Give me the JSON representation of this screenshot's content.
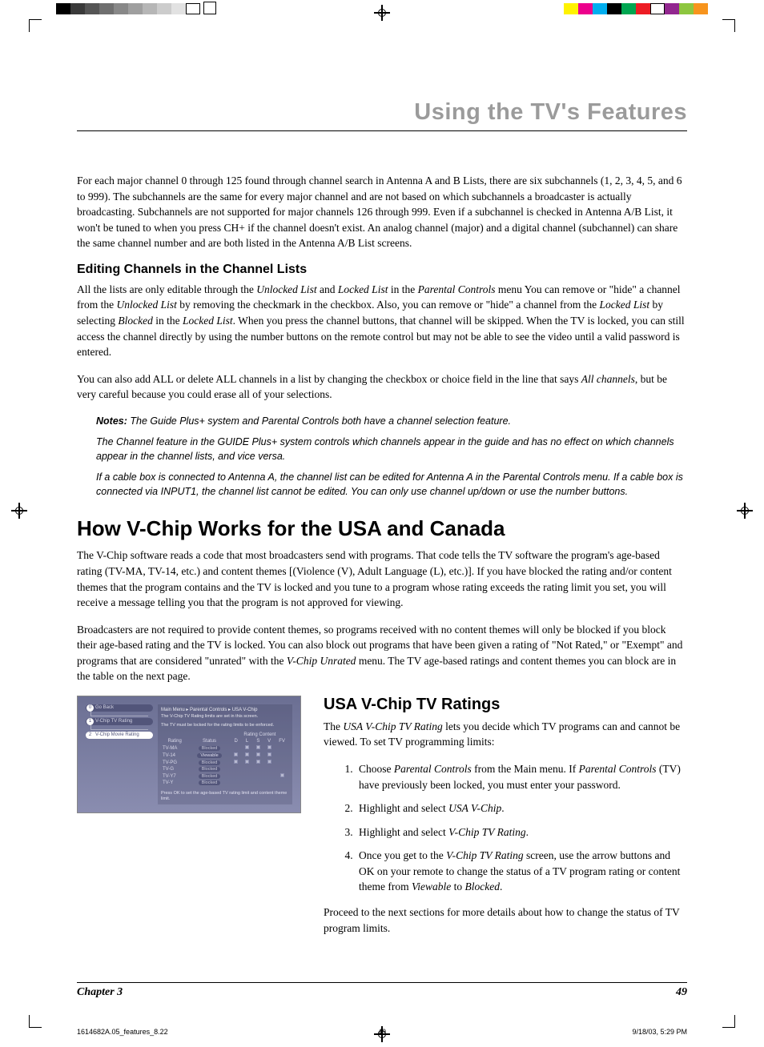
{
  "colorbar_left": [
    "#000000",
    "#3a3a3a",
    "#555555",
    "#6f6f6f",
    "#888888",
    "#9f9f9f",
    "#b6b6b6",
    "#cccccc",
    "#e2e2e2",
    "#ffffff"
  ],
  "colorbar_right": [
    "#fff200",
    "#ec008c",
    "#00aeef",
    "#000000",
    "#00a651",
    "#ed1c24",
    "#ffffff",
    "#92278f",
    "#8dc63f",
    "#f7941d"
  ],
  "header": {
    "title": "Using the TV's Features"
  },
  "p1": "For each major channel 0 through 125 found through channel search in Antenna A and B Lists, there are six subchannels (1, 2, 3, 4, 5, and 6 to 999). The subchannels are the same for every major channel and are not based on which subchannels a broadcaster is actually broadcasting. Subchannels are not supported for major channels 126 through 999. Even if a subchannel is checked in Antenna A/B List, it won't be tuned to when you press CH+ if the channel doesn't exist. An analog channel (major) and a digital channel (subchannel) can share the same channel number and are both listed in the Antenna A/B List screens.",
  "h3_1": "Editing Channels in the Channel Lists",
  "p2_pre": "All the lists are only editable through the ",
  "p2_em1": "Unlocked List",
  "p2_a": " and ",
  "p2_em2": "Locked List",
  "p2_b": " in the ",
  "p2_em3": "Parental Controls",
  "p2_c": " menu You can remove or \"hide\" a channel from the ",
  "p2_em4": "Unlocked List",
  "p2_d": " by removing the checkmark in the checkbox. Also, you can remove or \"hide\" a channel from the ",
  "p2_em5": "Locked List",
  "p2_e": " by selecting ",
  "p2_em6": "Blocked",
  "p2_f": " in the ",
  "p2_em7": "Locked List",
  "p2_g": ". When you press the channel buttons, that channel will be skipped.  When the TV is locked, you can still access the channel directly by using the number buttons on the remote control but may not be able to see the video until a valid password is entered.",
  "p3_a": "You can also add ALL or delete ALL channels in a list by changing the checkbox or choice field in the line that says ",
  "p3_em": "All channels",
  "p3_b": ", but be very careful because you could erase all of your selections.",
  "note1_strong": "Notes:",
  "note1": " The Guide Plus+ system and Parental Controls both have a channel selection feature.",
  "note2": "The Channel feature in the GUIDE Plus+ system controls which channels appear in the guide and has no effect on which channels appear in the channel lists, and vice versa.",
  "note3": "If a cable box is connected to Antenna A, the channel list can be edited for Antenna A in the Parental Controls menu. If a cable box is connected via INPUT1, the channel list cannot be edited. You can only use channel up/down or use the number buttons.",
  "h1": "How V-Chip Works for the USA and Canada",
  "p4": "The V-Chip software reads a code that most broadcasters send with programs. That code tells the TV software the program's age-based rating (TV-MA, TV-14, etc.) and content themes [(Violence (V), Adult Language (L), etc.)]. If you have blocked the rating and/or content themes that the program contains and the TV is locked and you tune to a program whose rating exceeds the rating limit you set, you will receive a message telling you that the program is not approved for viewing.",
  "p5_a": "Broadcasters are not required to provide content themes, so programs received with no content themes will only be blocked if you block their age-based rating and the TV is locked. You can also block out programs that have been given a rating of \"Not Rated,\" or \"Exempt\" and programs that are considered \"unrated\" with the ",
  "p5_em": "V-Chip Unrated",
  "p5_b": " menu. The TV age-based ratings and content themes you can block are in the table on the next page.",
  "menu": {
    "breadcrumb": "Main Menu ▸ Parental Controls ▸ USA V-Chip",
    "note_l1": "The V-Chip TV Rating limits are set in this screen.",
    "note_l2": "The TV must be locked for the rating limits to be enforced.",
    "sidebar": [
      {
        "num": "0",
        "label": "Go Back"
      },
      {
        "num": "1",
        "label": "V-Chip TV Rating"
      },
      {
        "num": "2",
        "label": "V-Chip Movie Rating"
      }
    ],
    "cols": [
      "Rating",
      "Status",
      "D",
      "L",
      "S",
      "V",
      "FV"
    ],
    "content_header": "Rating Content",
    "rows": [
      {
        "r": "TV-MA",
        "s": "Blocked",
        "c": [
          0,
          1,
          1,
          1,
          0
        ]
      },
      {
        "r": "TV-14",
        "s": "Viewable",
        "c": [
          1,
          1,
          1,
          1,
          0
        ]
      },
      {
        "r": "TV-PG",
        "s": "Blocked",
        "c": [
          1,
          1,
          1,
          1,
          0
        ]
      },
      {
        "r": "TV-G",
        "s": "Blocked",
        "c": [
          0,
          0,
          0,
          0,
          0
        ]
      },
      {
        "r": "TV-Y7",
        "s": "Blocked",
        "c": [
          0,
          0,
          0,
          0,
          1
        ]
      },
      {
        "r": "TV-Y",
        "s": "Blocked",
        "c": [
          0,
          0,
          0,
          0,
          0
        ]
      }
    ],
    "footer": "Press OK to set the age-based TV rating limit and content theme limit."
  },
  "h2": "USA V-Chip TV Ratings",
  "p6_a": "The ",
  "p6_em": "USA V-Chip TV Rating",
  "p6_b": " lets you decide which TV programs can and cannot be viewed. To set TV programming limits:",
  "li1_a": "Choose ",
  "li1_em1": "Parental Controls",
  "li1_b": " from the Main menu. If ",
  "li1_em2": "Parental Controls",
  "li1_c": " (TV) have previously been locked, you must enter your password.",
  "li2_a": "Highlight and select ",
  "li2_em": "USA V-Chip",
  "li2_b": ".",
  "li3_a": "Highlight and select ",
  "li3_em": "V-Chip TV Rating",
  "li3_b": ".",
  "li4_a": "Once you get to the ",
  "li4_em1": "V-Chip TV Rating",
  "li4_b": " screen, use the arrow buttons and OK on your remote to change the status of a TV program rating or content theme from ",
  "li4_em2": "Viewable",
  "li4_c": " to ",
  "li4_em3": "Blocked",
  "li4_d": ".",
  "p7": "Proceed to the next sections for more details about how to change the status of TV program limits.",
  "footer": {
    "chapter": "Chapter 3",
    "page": "49"
  },
  "slug": {
    "file": "1614682A.05_features_8.22",
    "pg": "49",
    "date": "9/18/03, 5:29 PM"
  }
}
